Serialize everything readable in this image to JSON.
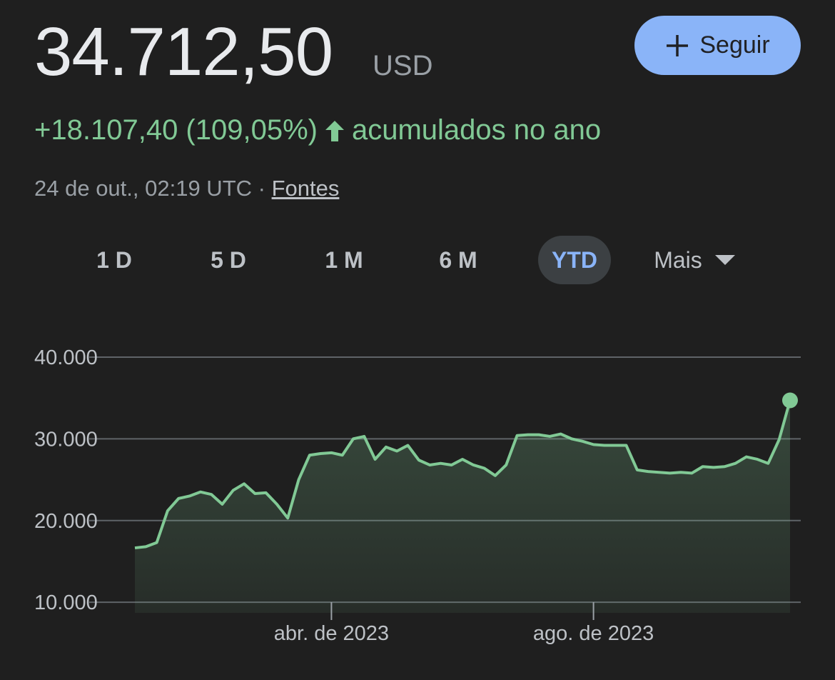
{
  "header": {
    "price": "34.712,50",
    "currency": "USD",
    "follow_button": "Seguir",
    "change": "+18.107,40 (109,05%)",
    "change_period": "acumulados no ano",
    "timestamp": "24 de out., 02:19 UTC · ",
    "sources_link": "Fontes"
  },
  "tabs": {
    "items": [
      "1 D",
      "5 D",
      "1 M",
      "6 M",
      "YTD",
      "Mais"
    ],
    "selected": "YTD"
  },
  "chart_data": {
    "type": "line",
    "categories": [
      null,
      null,
      null,
      null,
      null,
      null,
      null,
      null,
      null,
      null,
      null,
      null,
      null,
      null,
      null,
      null,
      null,
      null,
      "abr. de 2023",
      null,
      null,
      null,
      null,
      null,
      null,
      null,
      null,
      null,
      null,
      null,
      null,
      null,
      null,
      null,
      null,
      null,
      null,
      null,
      null,
      null,
      null,
      null,
      "ago. de 2023",
      null,
      null,
      null,
      null,
      null,
      null,
      null,
      null,
      null,
      null,
      null,
      null,
      null,
      null,
      null,
      null,
      null,
      null
    ],
    "series": [
      {
        "color": "#81c995",
        "values": [
          16650,
          16800,
          17300,
          21200,
          22700,
          23000,
          23500,
          23200,
          22000,
          23700,
          24500,
          23300,
          23400,
          22000,
          20300,
          25000,
          28000,
          28200,
          28300,
          28000,
          30000,
          30300,
          27500,
          29000,
          28500,
          29200,
          27400,
          26800,
          27000,
          26800,
          27500,
          26800,
          26400,
          25500,
          26800,
          30400,
          30500,
          30500,
          30300,
          30600,
          30000,
          29700,
          29300,
          29200,
          29200,
          29200,
          26200,
          26000,
          25900,
          25800,
          25900,
          25800,
          26600,
          26500,
          26600,
          27000,
          27800,
          27500,
          27000,
          29900,
          34712.5
        ]
      }
    ],
    "ylim": [
      8700,
      40000
    ],
    "yticks": [
      {
        "value": 10000,
        "label": "10.000"
      },
      {
        "value": 20000,
        "label": "20.000"
      },
      {
        "value": 30000,
        "label": "30.000"
      },
      {
        "value": 40000,
        "label": "40.000"
      }
    ],
    "grid": true
  }
}
